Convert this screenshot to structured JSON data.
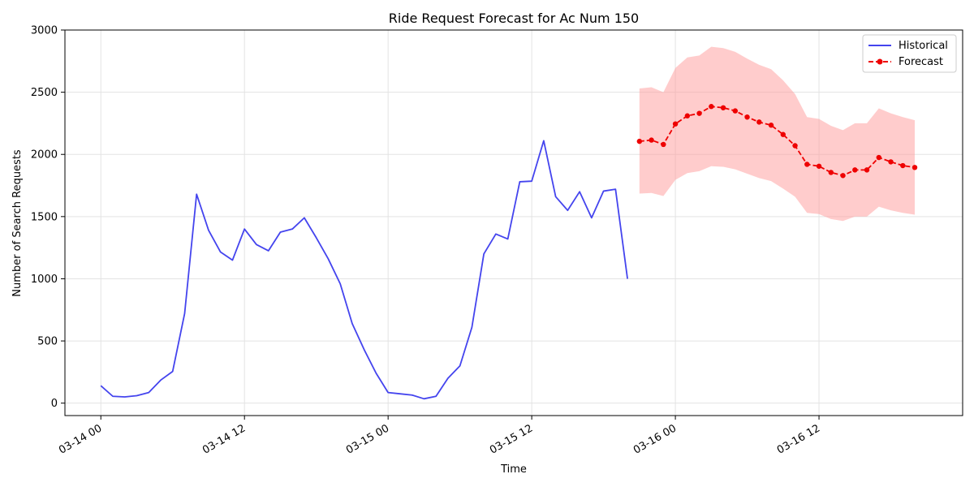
{
  "chart_data": {
    "type": "line",
    "title": "Ride Request Forecast for Ac Num 150",
    "xlabel": "Time",
    "ylabel": "Number of Search Requests",
    "xlim": [
      "2024-03-13T21:00",
      "2024-03-17T00:00"
    ],
    "ylim": [
      -100,
      3000
    ],
    "grid": true,
    "legend_position": "top-right",
    "x_ticks": [
      {
        "t": "2024-03-14T00:00",
        "label": "03-14 00"
      },
      {
        "t": "2024-03-14T12:00",
        "label": "03-14 12"
      },
      {
        "t": "2024-03-15T00:00",
        "label": "03-15 00"
      },
      {
        "t": "2024-03-15T12:00",
        "label": "03-15 12"
      },
      {
        "t": "2024-03-16T00:00",
        "label": "03-16 00"
      },
      {
        "t": "2024-03-16T12:00",
        "label": "03-16 12"
      }
    ],
    "y_ticks": [
      0,
      500,
      1000,
      1500,
      2000,
      2500,
      3000
    ],
    "series": [
      {
        "name": "Historical",
        "color": "#4444ee",
        "style": "solid",
        "start": "2024-03-14T00:00",
        "step_hours": 1,
        "values": [
          140,
          55,
          50,
          60,
          85,
          185,
          255,
          720,
          1680,
          1390,
          1215,
          1150,
          1400,
          1275,
          1225,
          1375,
          1400,
          1490,
          1330,
          1160,
          960,
          640,
          430,
          240,
          85,
          75,
          65,
          35,
          55,
          200,
          300,
          610,
          1200,
          1360,
          1320,
          1780,
          1785,
          2110,
          1660,
          1550,
          1700,
          1490,
          1705,
          1720,
          1000
        ]
      },
      {
        "name": "Forecast",
        "color": "#ee0000",
        "style": "dashed",
        "marker": "circle",
        "start": "2024-03-15T21:00",
        "step_hours": 1,
        "values": [
          2105,
          2115,
          2080,
          2245,
          2310,
          2330,
          2385,
          2375,
          2350,
          2300,
          2260,
          2235,
          2160,
          2070,
          1920,
          1905,
          1855,
          1830,
          1875,
          1875,
          1975,
          1940,
          1910,
          1895
        ],
        "lower": [
          1685,
          1690,
          1665,
          1795,
          1850,
          1865,
          1905,
          1900,
          1880,
          1845,
          1810,
          1785,
          1725,
          1660,
          1530,
          1520,
          1480,
          1465,
          1500,
          1500,
          1580,
          1550,
          1530,
          1515
        ],
        "upper": [
          2530,
          2540,
          2500,
          2695,
          2780,
          2795,
          2865,
          2855,
          2825,
          2770,
          2720,
          2685,
          2595,
          2485,
          2300,
          2285,
          2230,
          2195,
          2250,
          2250,
          2370,
          2330,
          2300,
          2275
        ],
        "band_color": "#ff9999"
      }
    ]
  }
}
